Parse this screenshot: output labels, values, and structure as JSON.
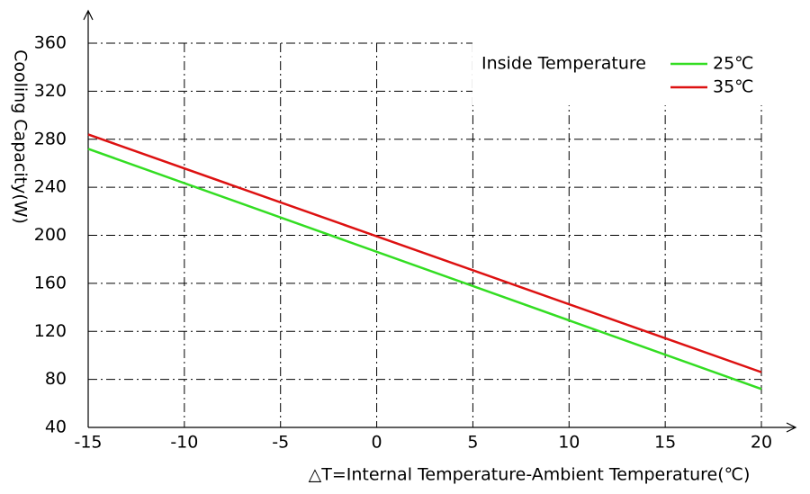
{
  "chart_data": {
    "type": "line",
    "x_label": "△T=Internal Temperature-Ambient Temperature(℃)",
    "y_label": "Cooling Capacity(W)",
    "legend_title": "Inside Temperature",
    "legend": "upper right",
    "grid": true,
    "x": [
      -15,
      20
    ],
    "series": [
      {
        "name": "25℃",
        "color": "#33dd22",
        "values": [
          272,
          72
        ]
      },
      {
        "name": "35℃",
        "color": "#dd1111",
        "values": [
          284,
          86
        ]
      }
    ],
    "xlim": [
      -15,
      20
    ],
    "xticks": [
      -15,
      -10,
      -5,
      0,
      5,
      10,
      15,
      20
    ],
    "ylim": [
      40,
      360
    ],
    "yticks": [
      40,
      80,
      120,
      160,
      200,
      240,
      280,
      320,
      360
    ]
  }
}
